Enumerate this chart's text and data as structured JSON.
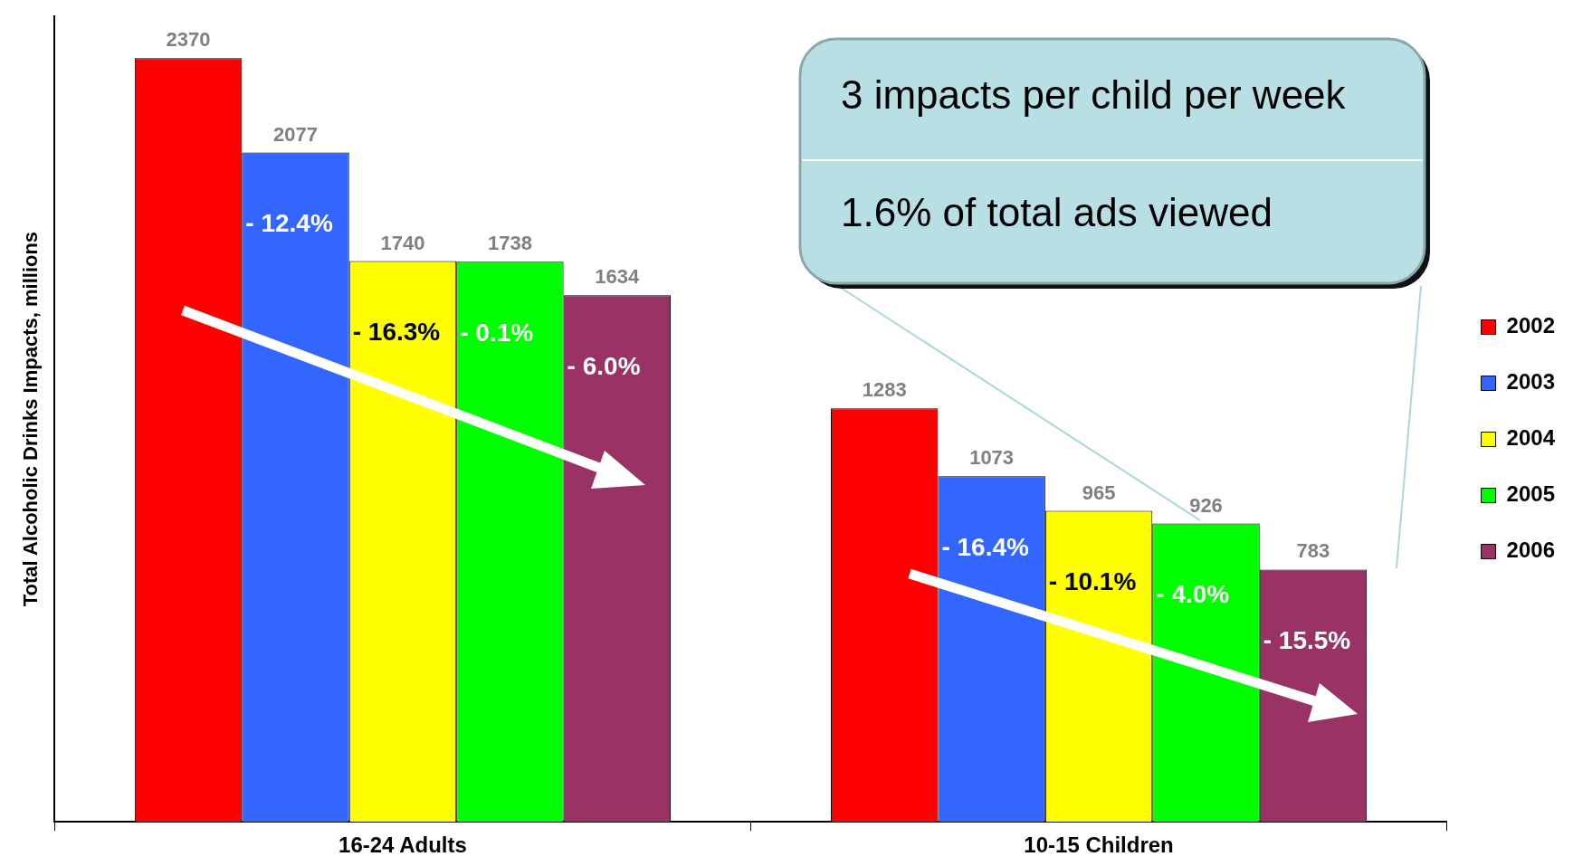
{
  "chart_data": {
    "type": "bar",
    "ylabel": "Total Alcoholic Drinks Impacts, millions",
    "categories": [
      "16-24 Adults",
      "10-15 Children"
    ],
    "series": [
      {
        "name": "2002",
        "color": "#ff0000",
        "values": [
          2370,
          1283
        ]
      },
      {
        "name": "2003",
        "color": "#3366ff",
        "values": [
          2077,
          1073
        ]
      },
      {
        "name": "2004",
        "color": "#ffff00",
        "values": [
          1740,
          965
        ]
      },
      {
        "name": "2005",
        "color": "#00ff00",
        "values": [
          1738,
          926
        ]
      },
      {
        "name": "2006",
        "color": "#993366",
        "values": [
          1634,
          783
        ]
      }
    ],
    "data_labels": true,
    "legend": "right",
    "grid": false,
    "tick_labels": "x",
    "annotations": [
      "3 impacts per child per week",
      "1.6% of total ads viewed",
      "- 12.4%",
      "- 16.3%",
      "- 0.1%",
      "- 6.0%",
      "- 16.4%",
      "- 10.1%",
      "- 4.0%",
      "- 15.5%"
    ]
  }
}
